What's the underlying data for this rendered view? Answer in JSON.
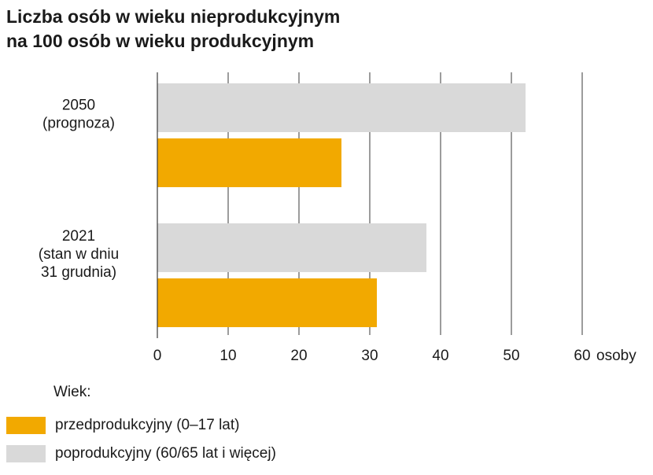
{
  "chart_data": {
    "type": "bar",
    "orientation": "horizontal",
    "title": [
      "Liczba osób w wieku nieprodukcyjnym",
      "na 100 osób w wieku produkcyjnym"
    ],
    "categories": [
      [
        "2050",
        "(prognoza)"
      ],
      [
        "2021",
        "(stan w dniu",
        "31 grudnia)"
      ]
    ],
    "series": [
      {
        "name": "poprodukcyjny (60/65 lat i więcej)",
        "color": "#d9d9d9",
        "values": [
          52,
          38
        ]
      },
      {
        "name": "przedprodukcyjny (0–17 lat)",
        "color": "#f2a900",
        "values": [
          26,
          31
        ]
      }
    ],
    "xlim": [
      0,
      60
    ],
    "xticks": [
      0,
      10,
      20,
      30,
      40,
      50,
      60
    ],
    "xunit": "osoby",
    "grid": true,
    "legend": {
      "title": "Wiek:",
      "placement": "bottom-left",
      "items": [
        {
          "label": "przedprodukcyjny (0–17 lat)",
          "color": "#f2a900"
        },
        {
          "label": "poprodukcyjny (60/65 lat i więcej)",
          "color": "#d9d9d9"
        }
      ]
    }
  }
}
